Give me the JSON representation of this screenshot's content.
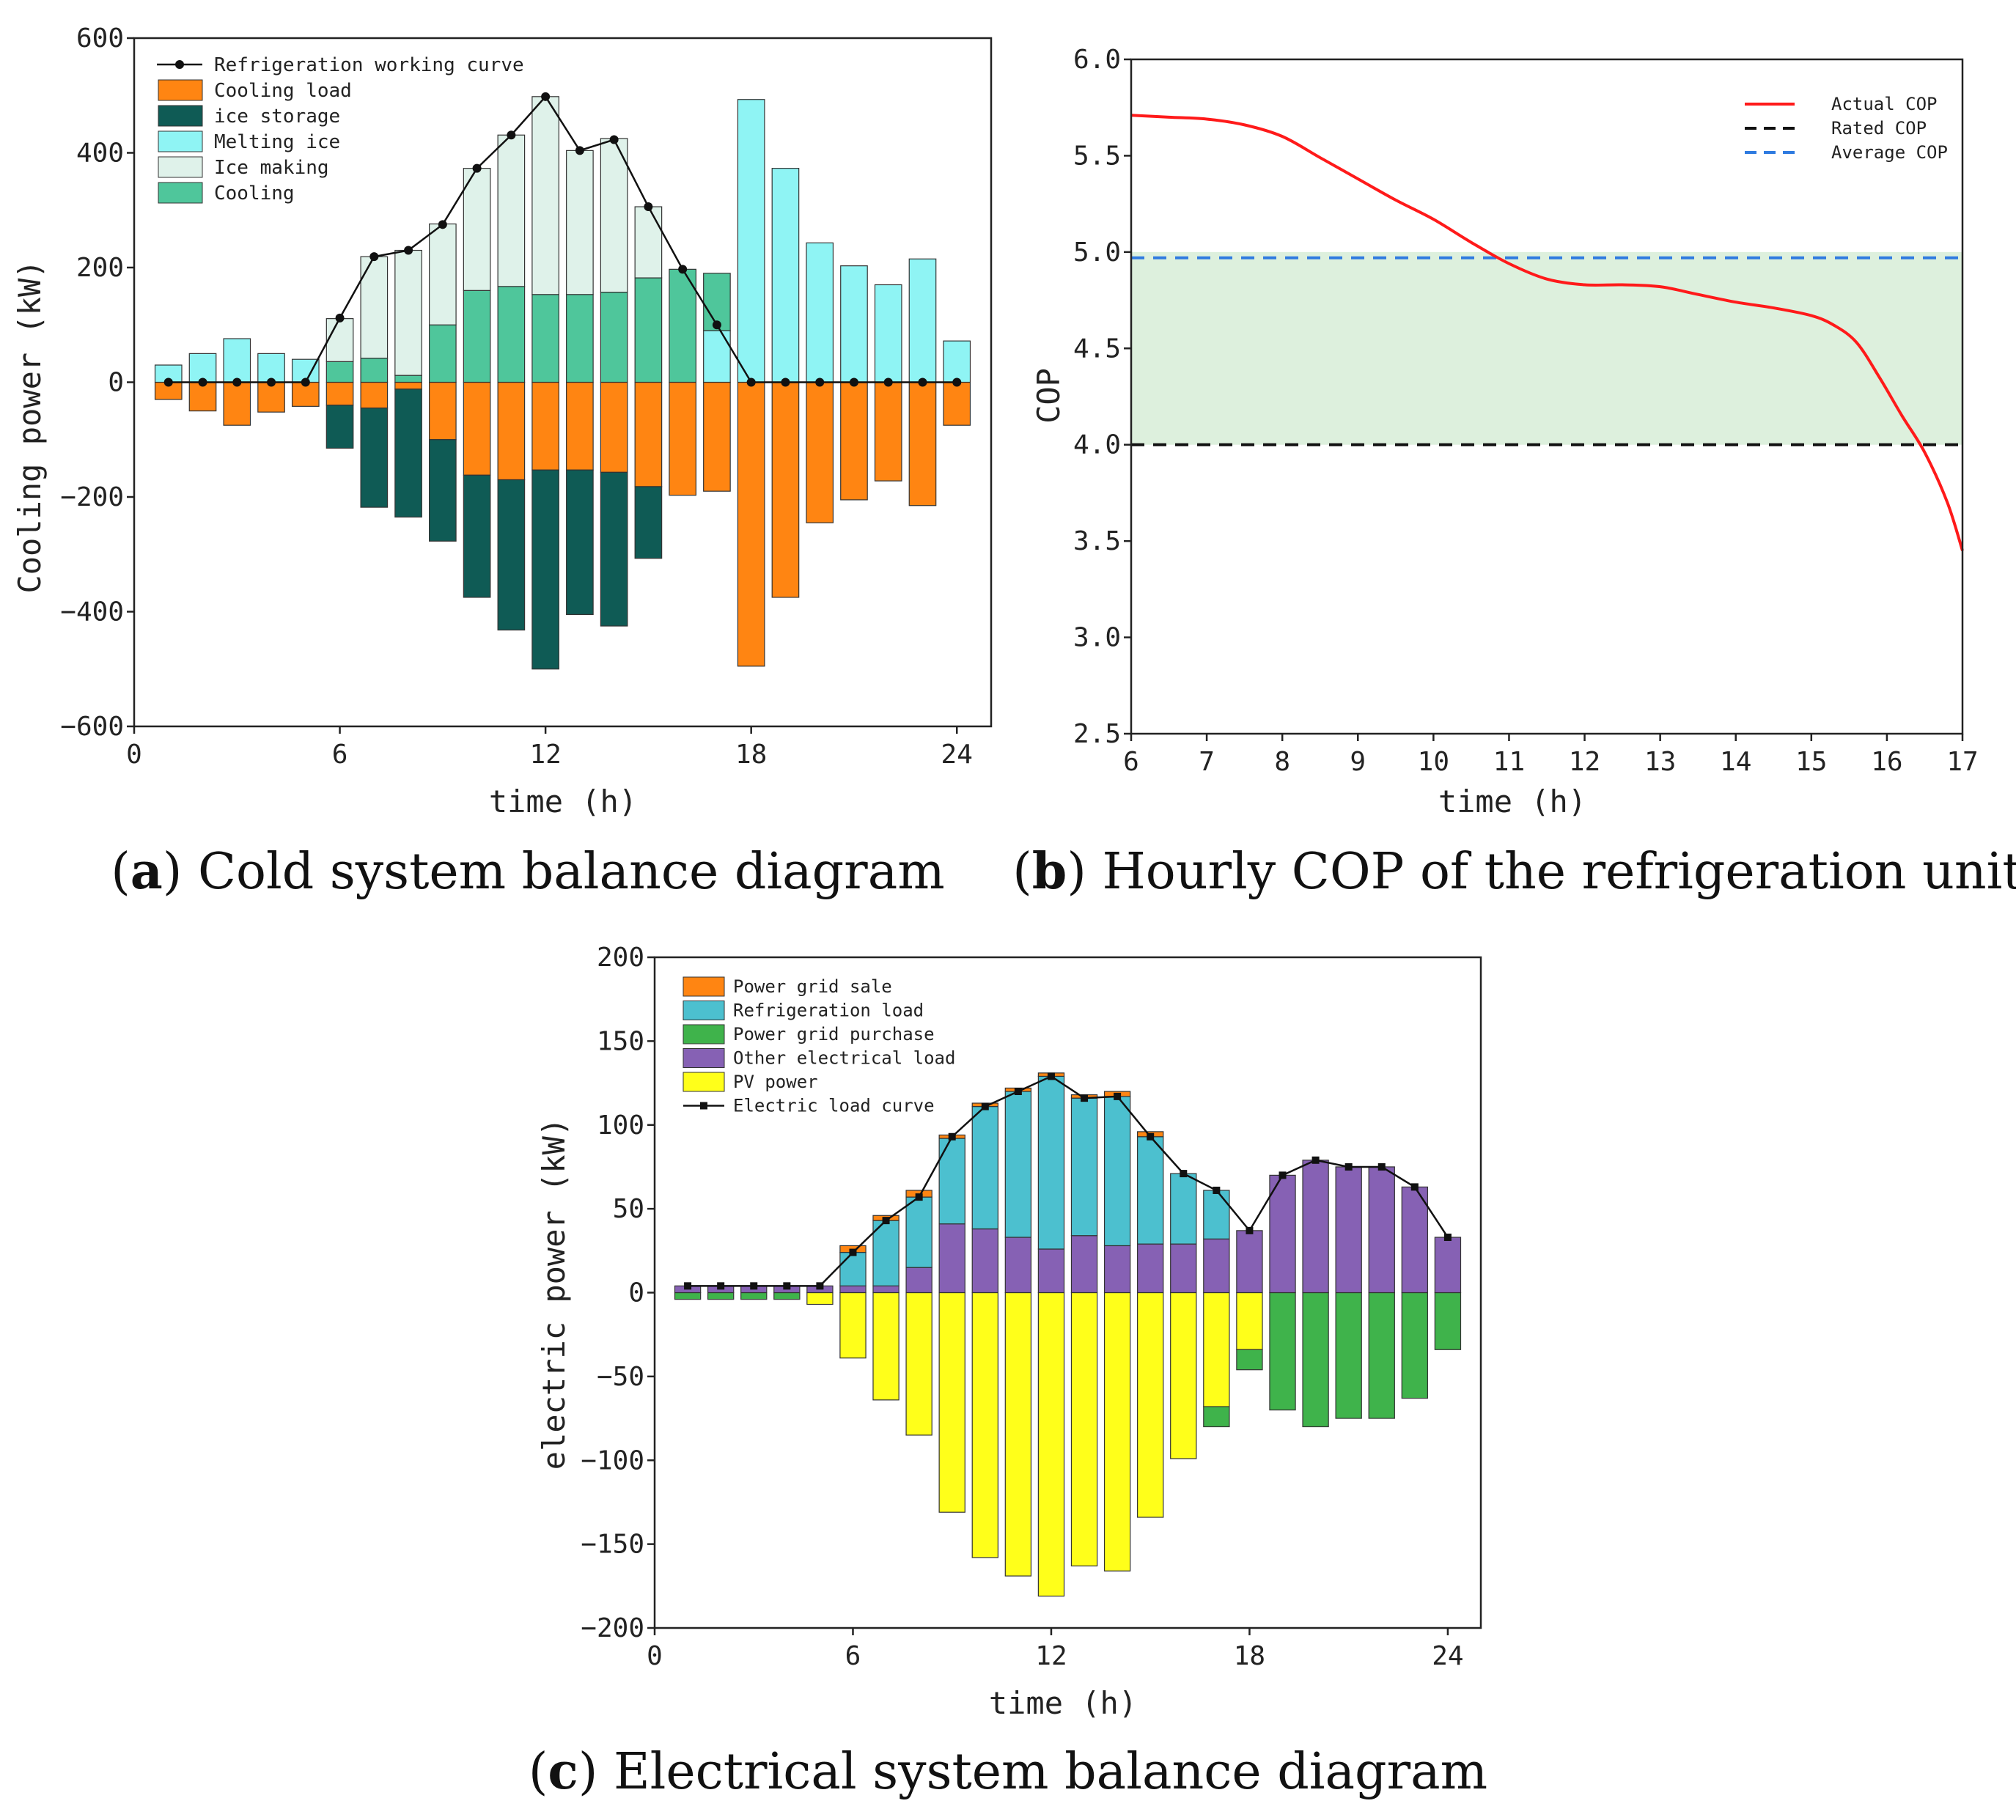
{
  "colors": {
    "cooling_load": "#FF8512",
    "ice_storage": "#0F5B55",
    "melting_ice": "#8FF4F4",
    "ice_making": "#DFF2EA",
    "cooling": "#4FC69B",
    "actual_cop": "#FF1A1A",
    "rated_cop": "#111111",
    "average_cop": "#2F7BE0",
    "band": "#DDF0DD",
    "grid_sale": "#FF8512",
    "refrigeration_load": "#4CC0CF",
    "grid_purchase": "#3FB34B",
    "other_load": "#8661B4",
    "pv_power": "#FFFF1A"
  },
  "captions": {
    "a_letter": "a",
    "a_text": " Cold system balance diagram",
    "b_letter": "b",
    "b_text": " Hourly COP of the refrigeration unit",
    "c_letter": "c",
    "c_text": " Electrical system balance diagram"
  },
  "chart_data": [
    {
      "id": "a",
      "type": "bar",
      "title": "Cold system balance diagram",
      "xlabel": "time (h)",
      "ylabel": "Cooling power (kW)",
      "xlim": [
        0,
        25
      ],
      "ylim": [
        -600,
        600
      ],
      "xticks": [
        0,
        6,
        12,
        18,
        24
      ],
      "yticks": [
        -600,
        -400,
        -200,
        0,
        200,
        400,
        600
      ],
      "legend": [
        "Refrigeration working curve",
        "Cooling load",
        "ice storage",
        "Melting ice",
        "Ice making",
        "Cooling"
      ],
      "x": [
        1,
        2,
        3,
        4,
        5,
        6,
        7,
        8,
        9,
        10,
        11,
        12,
        13,
        14,
        15,
        16,
        17,
        18,
        19,
        20,
        21,
        22,
        23,
        24
      ],
      "series": [
        {
          "name": "Cooling load",
          "values": [
            -30,
            -50,
            -75,
            -52,
            -42,
            -40,
            -45,
            -12,
            -100,
            -162,
            -170,
            -153,
            -153,
            -157,
            -182,
            -197,
            -190,
            -495,
            -375,
            -245,
            -205,
            -172,
            -215,
            -75
          ]
        },
        {
          "name": "ice storage",
          "values": [
            0,
            0,
            0,
            0,
            0,
            -75,
            -173,
            -223,
            -177,
            -213,
            -262,
            -347,
            -252,
            -268,
            -125,
            0,
            0,
            0,
            0,
            0,
            0,
            0,
            0,
            0
          ]
        },
        {
          "name": "Melting ice",
          "values": [
            30,
            50,
            76,
            50,
            40,
            0,
            0,
            0,
            0,
            0,
            0,
            0,
            0,
            0,
            0,
            0,
            90,
            493,
            373,
            243,
            203,
            170,
            215,
            72
          ]
        },
        {
          "name": "Cooling",
          "values": [
            0,
            0,
            0,
            0,
            0,
            36,
            42,
            12,
            100,
            160,
            167,
            153,
            153,
            157,
            182,
            197,
            100,
            0,
            0,
            0,
            0,
            0,
            0,
            0
          ]
        },
        {
          "name": "Ice making",
          "values": [
            0,
            0,
            0,
            0,
            0,
            75,
            177,
            218,
            176,
            213,
            264,
            345,
            251,
            268,
            124,
            0,
            0,
            0,
            0,
            0,
            0,
            0,
            0,
            0
          ]
        },
        {
          "name": "Refrigeration working curve",
          "values": [
            0,
            0,
            0,
            0,
            0,
            112,
            219,
            230,
            275,
            373,
            431,
            498,
            404,
            423,
            306,
            197,
            100,
            0,
            0,
            0,
            0,
            0,
            0,
            0
          ]
        }
      ]
    },
    {
      "id": "b",
      "type": "line",
      "title": "Hourly COP of the refrigeration unit",
      "xlabel": "time (h)",
      "ylabel": "COP",
      "xlim": [
        6,
        17
      ],
      "ylim": [
        2.5,
        6.0
      ],
      "xticks": [
        6,
        7,
        8,
        9,
        10,
        11,
        12,
        13,
        14,
        15,
        16,
        17
      ],
      "yticks": [
        2.5,
        3.0,
        3.5,
        4.0,
        4.5,
        5.0,
        5.5,
        6.0
      ],
      "band": [
        4.0,
        5.0
      ],
      "legend": [
        "Actual COP",
        "Rated COP",
        "Average COP"
      ],
      "series": [
        {
          "name": "Actual COP",
          "x": [
            6,
            6.5,
            7,
            7.5,
            8,
            8.5,
            9,
            9.5,
            10,
            10.5,
            11,
            11.5,
            12,
            12.5,
            13,
            13.5,
            14,
            14.5,
            15,
            15.3,
            15.6,
            15.9,
            16.2,
            16.5,
            16.8,
            17
          ],
          "y": [
            5.71,
            5.7,
            5.69,
            5.66,
            5.6,
            5.49,
            5.38,
            5.27,
            5.17,
            5.05,
            4.94,
            4.86,
            4.83,
            4.83,
            4.82,
            4.78,
            4.74,
            4.71,
            4.67,
            4.62,
            4.53,
            4.35,
            4.15,
            3.96,
            3.7,
            3.45
          ]
        },
        {
          "name": "Rated COP",
          "x": [
            6,
            17
          ],
          "y": [
            4.0,
            4.0
          ]
        },
        {
          "name": "Average COP",
          "x": [
            6,
            17
          ],
          "y": [
            4.97,
            4.97
          ]
        }
      ]
    },
    {
      "id": "c",
      "type": "bar",
      "title": "Electrical system balance diagram",
      "xlabel": "time (h)",
      "ylabel": "electric power (kW)",
      "xlim": [
        0,
        25
      ],
      "ylim": [
        -200,
        200
      ],
      "xticks": [
        0,
        6,
        12,
        18,
        24
      ],
      "yticks": [
        -200,
        -150,
        -100,
        -50,
        0,
        50,
        100,
        150,
        200
      ],
      "legend": [
        "Power grid sale",
        "Refrigeration load",
        "Power grid purchase",
        "Other electrical load",
        "PV power",
        "Electric load curve"
      ],
      "x": [
        1,
        2,
        3,
        4,
        5,
        6,
        7,
        8,
        9,
        10,
        11,
        12,
        13,
        14,
        15,
        16,
        17,
        18,
        19,
        20,
        21,
        22,
        23,
        24
      ],
      "series": [
        {
          "name": "PV power",
          "values": [
            0,
            0,
            0,
            0,
            -7,
            -39,
            -64,
            -85,
            -131,
            -158,
            -169,
            -181,
            -163,
            -166,
            -134,
            -99,
            -68,
            -34,
            0,
            0,
            0,
            0,
            0,
            0
          ]
        },
        {
          "name": "Power grid purchase",
          "values": [
            -4,
            -4,
            -4,
            -4,
            0,
            0,
            0,
            0,
            0,
            0,
            0,
            0,
            0,
            0,
            0,
            0,
            -12,
            -12,
            -70,
            -80,
            -75,
            -75,
            -63,
            -34
          ]
        },
        {
          "name": "Other electrical load",
          "values": [
            4,
            4,
            4,
            4,
            4,
            4,
            4,
            15,
            41,
            38,
            33,
            26,
            34,
            28,
            29,
            29,
            32,
            37,
            70,
            79,
            75,
            75,
            63,
            33
          ]
        },
        {
          "name": "Refrigeration load",
          "values": [
            0,
            0,
            0,
            0,
            0,
            20,
            39,
            42,
            51,
            73,
            87,
            103,
            82,
            89,
            64,
            42,
            29,
            0,
            0,
            0,
            0,
            0,
            0,
            0
          ]
        },
        {
          "name": "Power grid sale",
          "values": [
            0,
            0,
            0,
            0,
            0,
            4,
            3,
            4,
            2,
            2,
            2,
            2,
            2,
            3,
            3,
            0,
            0,
            0,
            0,
            0,
            0,
            0,
            0,
            0
          ]
        },
        {
          "name": "Electric load curve",
          "values": [
            4,
            4,
            4,
            4,
            4,
            24,
            43,
            57,
            93,
            111,
            120,
            129,
            116,
            117,
            93,
            71,
            61,
            37,
            70,
            79,
            75,
            75,
            63,
            33
          ]
        }
      ]
    }
  ]
}
